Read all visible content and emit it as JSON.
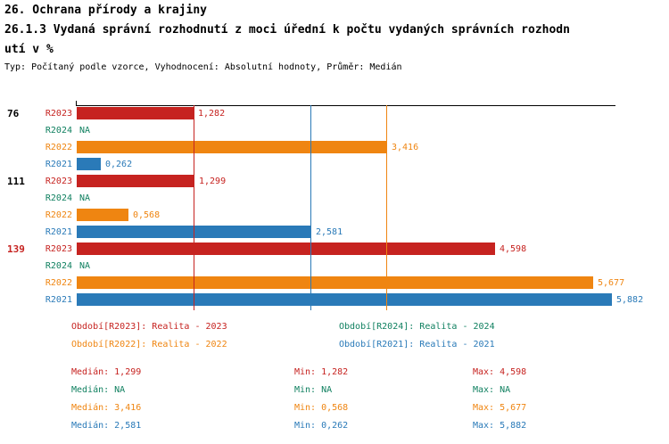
{
  "header": {
    "title_line1": "26. Ochrana přírody a krajiny",
    "title_line2": "26.1.3 Vydaná správní rozhodnutí z moci úřední k počtu vydaných správních rozhodn",
    "title_line3": "utí v %",
    "subtitle": "Typ: Počítaný podle vzorce, Vyhodnocení: Absolutní hodnoty, Průměr: Medián"
  },
  "colors": {
    "R2023": "#c62320",
    "R2024": "#108060",
    "R2022": "#ef8511",
    "R2021": "#2a7ab8",
    "axis": "#000000",
    "group_label": "#000000",
    "group_label_highlight": "#c62320"
  },
  "chart_data": {
    "type": "bar",
    "orientation": "horizontal",
    "title": "26.1.3 Vydaná správní rozhodnutí z moci úřední k počtu vydaných správních rozhodnutí v %",
    "xlabel": "",
    "ylabel": "",
    "xlim": [
      0,
      5.93
    ],
    "grid": false,
    "value_format": "decimal-comma",
    "series": [
      "R2023",
      "R2024",
      "R2022",
      "R2021"
    ],
    "groups": [
      {
        "label": "76",
        "highlight": false,
        "values": {
          "R2023": 1.282,
          "R2024": null,
          "R2022": 3.416,
          "R2021": 0.262
        },
        "displays": {
          "R2023": "1,282",
          "R2024": "NA",
          "R2022": "3,416",
          "R2021": "0,262"
        }
      },
      {
        "label": "111",
        "highlight": false,
        "values": {
          "R2023": 1.299,
          "R2024": null,
          "R2022": 0.568,
          "R2021": 2.581
        },
        "displays": {
          "R2023": "1,299",
          "R2024": "NA",
          "R2022": "0,568",
          "R2021": "2,581"
        }
      },
      {
        "label": "139",
        "highlight": true,
        "values": {
          "R2023": 4.598,
          "R2024": null,
          "R2022": 5.677,
          "R2021": 5.882
        },
        "displays": {
          "R2023": "4,598",
          "R2024": "NA",
          "R2022": "5,677",
          "R2021": "5,882"
        }
      }
    ],
    "median_lines": [
      {
        "series": "R2023",
        "value": 1.299
      },
      {
        "series": "R2022",
        "value": 3.416
      },
      {
        "series": "R2021",
        "value": 2.581
      }
    ]
  },
  "legend": {
    "items": [
      {
        "series": "R2023",
        "label": "Období[R2023]: Realita - 2023"
      },
      {
        "series": "R2024",
        "label": "Období[R2024]: Realita - 2024"
      },
      {
        "series": "R2022",
        "label": "Období[R2022]: Realita - 2022"
      },
      {
        "series": "R2021",
        "label": "Období[R2021]: Realita - 2021"
      }
    ]
  },
  "stats": {
    "rows": [
      {
        "series": "R2023",
        "median": "Medián: 1,299",
        "min": "Min: 1,282",
        "max": "Max: 4,598"
      },
      {
        "series": "R2024",
        "median": "Medián: NA",
        "min": "Min: NA",
        "max": "Max: NA"
      },
      {
        "series": "R2022",
        "median": "Medián: 3,416",
        "min": "Min: 0,568",
        "max": "Max: 5,677"
      },
      {
        "series": "R2021",
        "median": "Medián: 2,581",
        "min": "Min: 0,262",
        "max": "Max: 5,882"
      }
    ]
  }
}
